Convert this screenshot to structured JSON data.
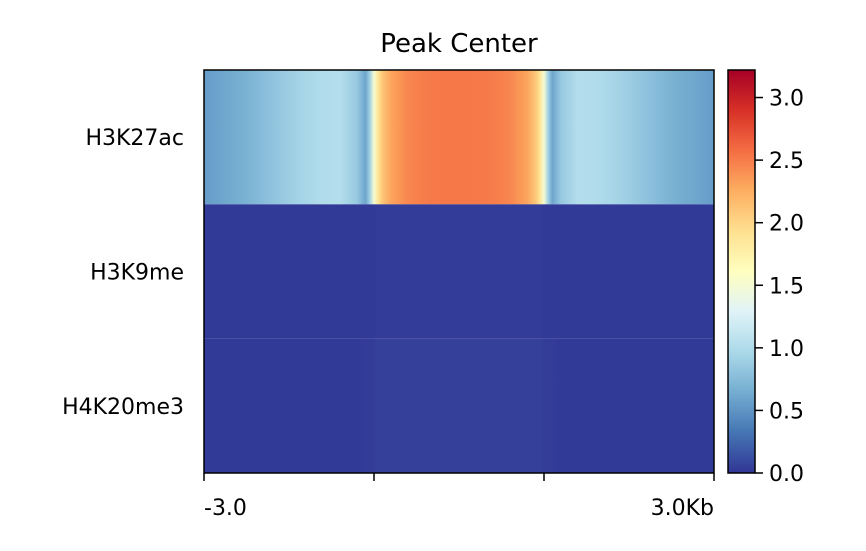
{
  "chart_data": {
    "type": "heatmap",
    "title": "Peak Center",
    "rows": [
      "H3K27ac",
      "H3K9me",
      "H4K20me3"
    ],
    "x_tick_labels": [
      "-3.0",
      "",
      "",
      "3.0Kb"
    ],
    "x": [
      -3.0,
      -2.8,
      -2.6,
      -2.4,
      -2.2,
      -2.0,
      -1.8,
      -1.6,
      -1.4,
      -1.2,
      -1.1,
      -1.05,
      -1.0,
      -0.95,
      -0.9,
      -0.8,
      -0.6,
      -0.4,
      -0.2,
      0.0,
      0.2,
      0.4,
      0.6,
      0.8,
      0.9,
      0.95,
      1.0,
      1.05,
      1.1,
      1.2,
      1.4,
      1.6,
      1.8,
      2.0,
      2.2,
      2.4,
      2.6,
      2.8,
      3.0
    ],
    "values": [
      [
        0.55,
        0.6,
        0.65,
        0.72,
        0.8,
        0.88,
        0.95,
        1.0,
        1.02,
        0.85,
        0.6,
        0.9,
        1.5,
        1.9,
        2.1,
        2.3,
        2.45,
        2.5,
        2.52,
        2.52,
        2.52,
        2.5,
        2.45,
        2.3,
        2.1,
        1.9,
        1.5,
        0.9,
        0.6,
        0.85,
        1.02,
        1.0,
        0.95,
        0.88,
        0.8,
        0.72,
        0.65,
        0.6,
        0.55
      ],
      [
        0.02,
        0.02,
        0.02,
        0.02,
        0.02,
        0.02,
        0.02,
        0.02,
        0.02,
        0.02,
        0.02,
        0.02,
        0.02,
        0.03,
        0.03,
        0.03,
        0.03,
        0.03,
        0.03,
        0.03,
        0.03,
        0.03,
        0.03,
        0.03,
        0.03,
        0.03,
        0.02,
        0.02,
        0.02,
        0.02,
        0.02,
        0.02,
        0.02,
        0.02,
        0.02,
        0.02,
        0.02,
        0.02,
        0.02
      ],
      [
        0.02,
        0.02,
        0.02,
        0.02,
        0.02,
        0.02,
        0.02,
        0.02,
        0.02,
        0.02,
        0.03,
        0.03,
        0.04,
        0.05,
        0.05,
        0.05,
        0.05,
        0.05,
        0.05,
        0.05,
        0.05,
        0.05,
        0.05,
        0.05,
        0.05,
        0.05,
        0.04,
        0.03,
        0.03,
        0.02,
        0.02,
        0.02,
        0.02,
        0.02,
        0.02,
        0.02,
        0.02,
        0.02,
        0.02
      ]
    ],
    "xlim": [
      -3.0,
      3.0
    ],
    "colorbar": {
      "min": 0.0,
      "max": 3.22,
      "ticks": [
        0.0,
        0.5,
        1.0,
        1.5,
        2.0,
        2.5,
        3.0
      ],
      "tick_labels": [
        "0.0",
        "0.5",
        "1.0",
        "1.5",
        "2.0",
        "2.5",
        "3.0"
      ],
      "colormap": "RdYlBu_r",
      "colormap_stops": [
        "#313695",
        "#4575b4",
        "#74add1",
        "#abd9e9",
        "#e0f3f8",
        "#ffffbf",
        "#fee090",
        "#fdae61",
        "#f46d43",
        "#d73027",
        "#a50026"
      ]
    },
    "grid": false,
    "legend": "colorbar-right"
  }
}
